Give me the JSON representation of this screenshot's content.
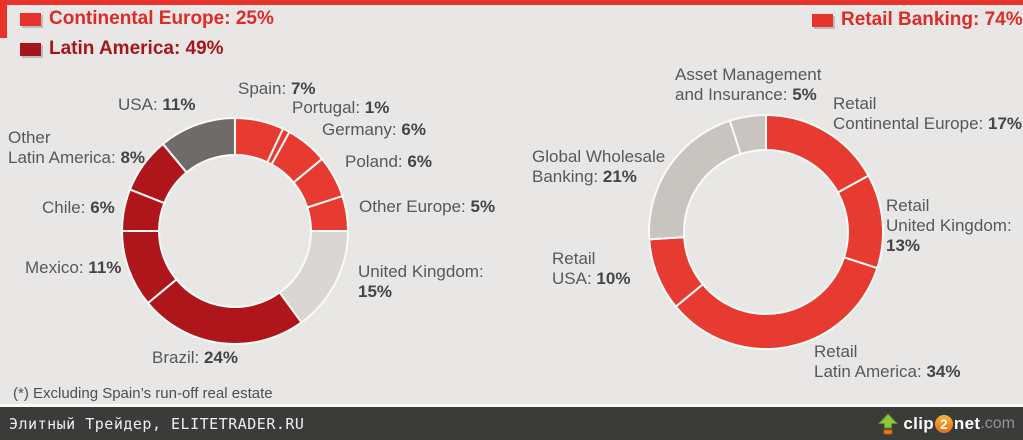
{
  "page": {
    "background": "#e8e7e5",
    "accent_red": "#e6332c",
    "accent_dark_red": "#a5161c"
  },
  "chart_data": [
    {
      "type": "pie",
      "subtype": "donut",
      "name": "revenue-by-geography",
      "title": "",
      "legend_position": "top-left",
      "legend": [
        {
          "label": "Continental Europe: 25%",
          "color": "#e6332c"
        },
        {
          "label": "Latin America: 49%",
          "color": "#a5161c"
        }
      ],
      "slices": [
        {
          "name": "Spain",
          "value": 7,
          "pct": "7%",
          "color": "#e73a30",
          "label_lines": [
            "Spain: "
          ]
        },
        {
          "name": "Portugal",
          "value": 1,
          "pct": "1%",
          "color": "#e73a30",
          "label_lines": [
            "Portugal: "
          ]
        },
        {
          "name": "Germany",
          "value": 6,
          "pct": "6%",
          "color": "#e73a30",
          "label_lines": [
            "Germany: "
          ]
        },
        {
          "name": "Poland",
          "value": 6,
          "pct": "6%",
          "color": "#e73a30",
          "label_lines": [
            "Poland: "
          ]
        },
        {
          "name": "Other Europe",
          "value": 5,
          "pct": "5%",
          "color": "#e73a30",
          "label_lines": [
            "Other Europe: "
          ]
        },
        {
          "name": "United Kingdom",
          "value": 15,
          "pct": "15%",
          "color": "#d9d6d3",
          "label_lines": [
            "United Kingdom:",
            ""
          ]
        },
        {
          "name": "Brazil",
          "value": 24,
          "pct": "24%",
          "color": "#ae161b",
          "label_lines": [
            "Brazil: "
          ]
        },
        {
          "name": "Mexico",
          "value": 11,
          "pct": "11%",
          "color": "#ae161b",
          "label_lines": [
            "Mexico: "
          ]
        },
        {
          "name": "Chile",
          "value": 6,
          "pct": "6%",
          "color": "#ae161b",
          "label_lines": [
            "Chile: "
          ]
        },
        {
          "name": "Other Latin America",
          "value": 8,
          "pct": "8%",
          "color": "#ae161b",
          "label_lines": [
            "Other",
            "Latin America: "
          ]
        },
        {
          "name": "USA",
          "value": 11,
          "pct": "11%",
          "color": "#6e6b69",
          "label_lines": [
            "USA: "
          ]
        }
      ]
    },
    {
      "type": "pie",
      "subtype": "donut",
      "name": "revenue-by-business",
      "title": "",
      "legend_position": "top-right",
      "legend": [
        {
          "label": "Retail Banking: 74%",
          "color": "#e6332c"
        }
      ],
      "slices": [
        {
          "name": "Retail Continental Europe",
          "value": 17,
          "pct": "17%",
          "color": "#e73a30",
          "label_lines": [
            "Retail",
            "Continental Europe: "
          ]
        },
        {
          "name": "Retail United Kingdom",
          "value": 13,
          "pct": "13%",
          "color": "#e73a30",
          "label_lines": [
            "Retail",
            "United Kingdom:",
            ""
          ]
        },
        {
          "name": "Retail Latin America",
          "value": 34,
          "pct": "34%",
          "color": "#e73a30",
          "label_lines": [
            "Retail",
            "Latin America: "
          ]
        },
        {
          "name": "Retail USA",
          "value": 10,
          "pct": "10%",
          "color": "#e73a30",
          "label_lines": [
            "Retail",
            "USA: "
          ]
        },
        {
          "name": "Global Wholesale Banking",
          "value": 21,
          "pct": "21%",
          "color": "#c8c4bf",
          "label_lines": [
            "Global Wholesale",
            "Banking: "
          ]
        },
        {
          "name": "Asset Management and Insurance",
          "value": 5,
          "pct": "5%",
          "color": "#c8c4bf",
          "label_lines": [
            "Asset Management",
            "and Insurance: "
          ]
        }
      ]
    }
  ],
  "footnote": "(*) Excluding Spain’s run-off real estate",
  "footer": {
    "site": "Элитный Трейдер, ELITETRADER.RU",
    "logo": {
      "clip": "clip",
      "two": "2",
      "net": "net",
      "com": ".com"
    }
  }
}
